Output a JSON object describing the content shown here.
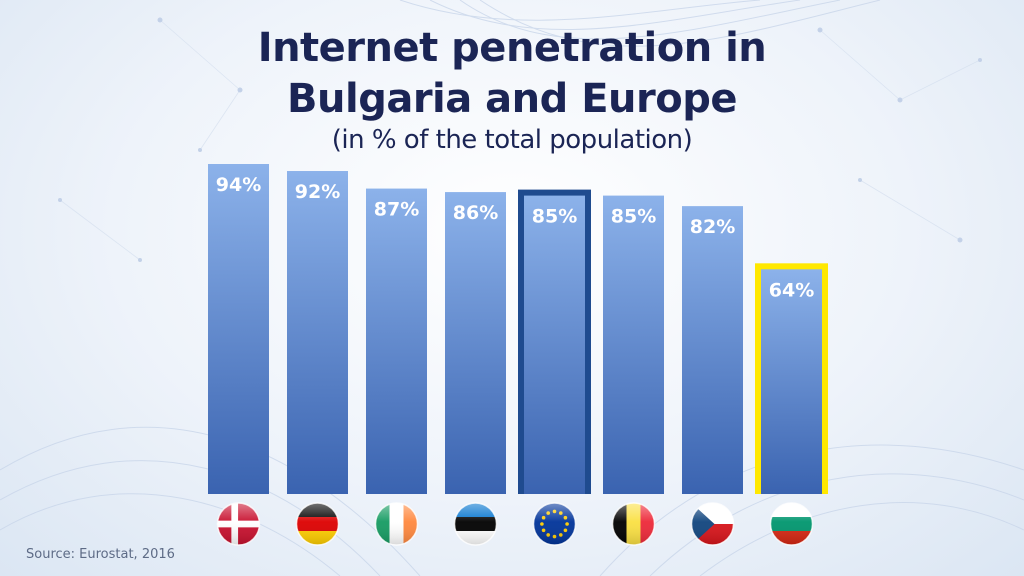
{
  "title_line1": "Internet penetration in",
  "title_line2": "Bulgaria and Europe",
  "subtitle": "(in % of the total population)",
  "source": "Source: Eurostat, 2016",
  "chart_data": {
    "type": "bar",
    "title": "Internet penetration in Bulgaria and Europe",
    "subtitle": "(in % of the total population)",
    "categories": [
      "Denmark",
      "Germany",
      "Ireland",
      "Estonia",
      "EU",
      "Belgium",
      "Czech Republic",
      "Bulgaria"
    ],
    "values": [
      94,
      92,
      87,
      86,
      85,
      85,
      82,
      64
    ],
    "labels": [
      "94%",
      "92%",
      "87%",
      "86%",
      "85%",
      "85%",
      "82%",
      "64%"
    ],
    "flags": [
      "denmark-flag",
      "germany-flag",
      "ireland-flag",
      "estonia-flag",
      "eu-flag",
      "belgium-flag",
      "czech-flag",
      "bulgaria-flag"
    ],
    "highlight": {
      "EU": "#1f4b8f",
      "Bulgaria": "#ffe800"
    },
    "bar_color_top": "#8cb2ea",
    "bar_color_bottom": "#3a63b0",
    "ylim": [
      0,
      100
    ],
    "xlabel": "",
    "ylabel": "",
    "grid": false,
    "legend": "none"
  }
}
